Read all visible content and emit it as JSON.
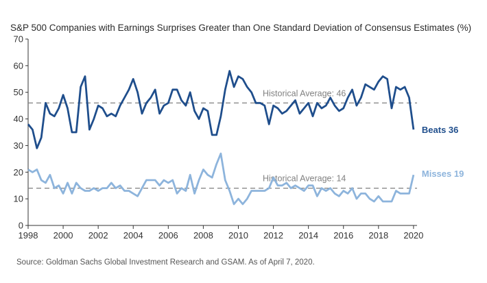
{
  "chart_data": {
    "type": "line",
    "title": "S&P 500 Companies with Earnings Surprises Greater than One Standard Deviation of Consensus Estimates (%)",
    "xlabel": "",
    "ylabel": "",
    "xlim": [
      1998.0,
      2020.2
    ],
    "ylim": [
      0,
      70
    ],
    "y_ticks": [
      0,
      10,
      20,
      30,
      40,
      50,
      60,
      70
    ],
    "y_tick_labels": [
      "0",
      "10",
      "20",
      "30",
      "40",
      "50",
      "60",
      "70"
    ],
    "x_ticks": [
      1998,
      2000,
      2002,
      2004,
      2006,
      2008,
      2010,
      2012,
      2014,
      2016,
      2018,
      2020
    ],
    "x_tick_labels": [
      "1998",
      "2000",
      "2002",
      "2004",
      "2006",
      "2008",
      "2010",
      "2012",
      "2014",
      "2016",
      "2018",
      "2020"
    ],
    "series": [
      {
        "name": "Beats",
        "end_label": "Beats 36",
        "color": "#1f4e8c",
        "average": 46,
        "average_label": "Historical Average: 46",
        "x": [
          1998.0,
          1998.25,
          1998.5,
          1998.75,
          1999.0,
          1999.25,
          1999.5,
          1999.75,
          2000.0,
          2000.25,
          2000.5,
          2000.75,
          2001.0,
          2001.25,
          2001.5,
          2001.75,
          2002.0,
          2002.25,
          2002.5,
          2002.75,
          2003.0,
          2003.25,
          2003.5,
          2003.75,
          2004.0,
          2004.25,
          2004.5,
          2004.75,
          2005.0,
          2005.25,
          2005.5,
          2005.75,
          2006.0,
          2006.25,
          2006.5,
          2006.75,
          2007.0,
          2007.25,
          2007.5,
          2007.75,
          2008.0,
          2008.25,
          2008.5,
          2008.75,
          2009.0,
          2009.25,
          2009.5,
          2009.75,
          2010.0,
          2010.25,
          2010.5,
          2010.75,
          2011.0,
          2011.25,
          2011.5,
          2011.75,
          2012.0,
          2012.25,
          2012.5,
          2012.75,
          2013.0,
          2013.25,
          2013.5,
          2013.75,
          2014.0,
          2014.25,
          2014.5,
          2014.75,
          2015.0,
          2015.25,
          2015.5,
          2015.75,
          2016.0,
          2016.25,
          2016.5,
          2016.75,
          2017.0,
          2017.25,
          2017.5,
          2017.75,
          2018.0,
          2018.25,
          2018.5,
          2018.75,
          2019.0,
          2019.25,
          2019.5,
          2019.75,
          2020.0
        ],
        "values": [
          38,
          36,
          29,
          33,
          46,
          42,
          41,
          44,
          49,
          44,
          35,
          35,
          52,
          56,
          36,
          40,
          45,
          44,
          41,
          42,
          41,
          45,
          48,
          51,
          55,
          50,
          42,
          46,
          48,
          51,
          42,
          45,
          46,
          51,
          51,
          47,
          45,
          50,
          43,
          40,
          44,
          43,
          34,
          34,
          41,
          51,
          58,
          52,
          56,
          55,
          52,
          50,
          46,
          46,
          45,
          38,
          45,
          44,
          42,
          43,
          45,
          47,
          42,
          44,
          46,
          41,
          46,
          44,
          45,
          48,
          45,
          43,
          44,
          48,
          51,
          45,
          48,
          53,
          52,
          51,
          54,
          56,
          55,
          44,
          52,
          51,
          52,
          48,
          36
        ]
      },
      {
        "name": "Misses",
        "end_label": "Misses 19",
        "color": "#8db4dc",
        "average": 14,
        "average_label": "Historical Average: 14",
        "x": [
          1998.0,
          1998.25,
          1998.5,
          1998.75,
          1999.0,
          1999.25,
          1999.5,
          1999.75,
          2000.0,
          2000.25,
          2000.5,
          2000.75,
          2001.0,
          2001.25,
          2001.5,
          2001.75,
          2002.0,
          2002.25,
          2002.5,
          2002.75,
          2003.0,
          2003.25,
          2003.5,
          2003.75,
          2004.0,
          2004.25,
          2004.5,
          2004.75,
          2005.0,
          2005.25,
          2005.5,
          2005.75,
          2006.0,
          2006.25,
          2006.5,
          2006.75,
          2007.0,
          2007.25,
          2007.5,
          2007.75,
          2008.0,
          2008.25,
          2008.5,
          2008.75,
          2009.0,
          2009.25,
          2009.5,
          2009.75,
          2010.0,
          2010.25,
          2010.5,
          2010.75,
          2011.0,
          2011.25,
          2011.5,
          2011.75,
          2012.0,
          2012.25,
          2012.5,
          2012.75,
          2013.0,
          2013.25,
          2013.5,
          2013.75,
          2014.0,
          2014.25,
          2014.5,
          2014.75,
          2015.0,
          2015.25,
          2015.5,
          2015.75,
          2016.0,
          2016.25,
          2016.5,
          2016.75,
          2017.0,
          2017.25,
          2017.5,
          2017.75,
          2018.0,
          2018.25,
          2018.5,
          2018.75,
          2019.0,
          2019.25,
          2019.5,
          2019.75,
          2020.0
        ],
        "values": [
          21,
          20,
          21,
          17,
          16,
          19,
          14,
          15,
          12,
          16,
          12,
          16,
          14,
          13,
          13,
          14,
          13,
          14,
          14,
          16,
          14,
          15,
          13,
          13,
          12,
          11,
          14,
          17,
          17,
          17,
          15,
          17,
          16,
          17,
          12,
          14,
          13,
          19,
          12,
          17,
          21,
          19,
          18,
          23,
          27,
          17,
          13,
          8,
          10,
          8,
          10,
          13,
          13,
          13,
          13,
          14,
          18,
          15,
          15,
          16,
          14,
          15,
          14,
          13,
          15,
          15,
          11,
          14,
          13,
          14,
          12,
          11,
          13,
          12,
          14,
          10,
          12,
          12,
          10,
          9,
          11,
          9,
          9,
          9,
          13,
          12,
          12,
          12,
          19
        ]
      }
    ],
    "source": "Source: Goldman Sachs Global Investment Research and GSAM. As of April 7, 2020."
  }
}
